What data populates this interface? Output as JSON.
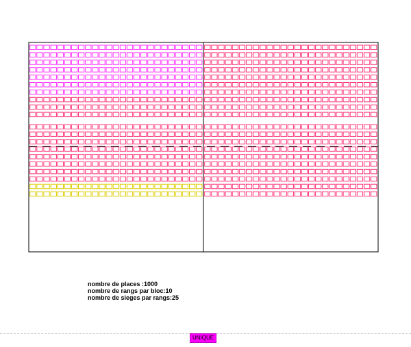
{
  "hall": {
    "blocks": 4,
    "rows_per_block": 10,
    "seats_per_row": 25,
    "colors": {
      "magenta": "#ff33ff",
      "pink": "#ff3377",
      "yellow": "#ddcc00",
      "frame": "#000000",
      "aisle": "#000000"
    },
    "row_colors_top_left": [
      "magenta",
      "magenta",
      "magenta",
      "magenta",
      "magenta",
      "magenta",
      "magenta",
      "pink",
      "pink",
      "pink",
      "pink",
      "pink",
      "pink",
      "pink",
      "pink",
      "pink",
      "pink",
      "pink",
      "yellow",
      "yellow"
    ],
    "row_colors_right": [
      "pink",
      "pink",
      "pink",
      "pink",
      "pink",
      "pink",
      "pink",
      "pink",
      "pink",
      "pink",
      "pink",
      "pink",
      "pink",
      "pink",
      "pink",
      "pink",
      "pink",
      "pink",
      "pink",
      "pink"
    ]
  },
  "info": {
    "places": "nombre de places :1000",
    "rangs": "nombre de rangs par bloc:10",
    "sieges": "nombre de sieges par rangs:25"
  },
  "tab": {
    "label": "UNIQUE",
    "color": "#ff00ff"
  }
}
